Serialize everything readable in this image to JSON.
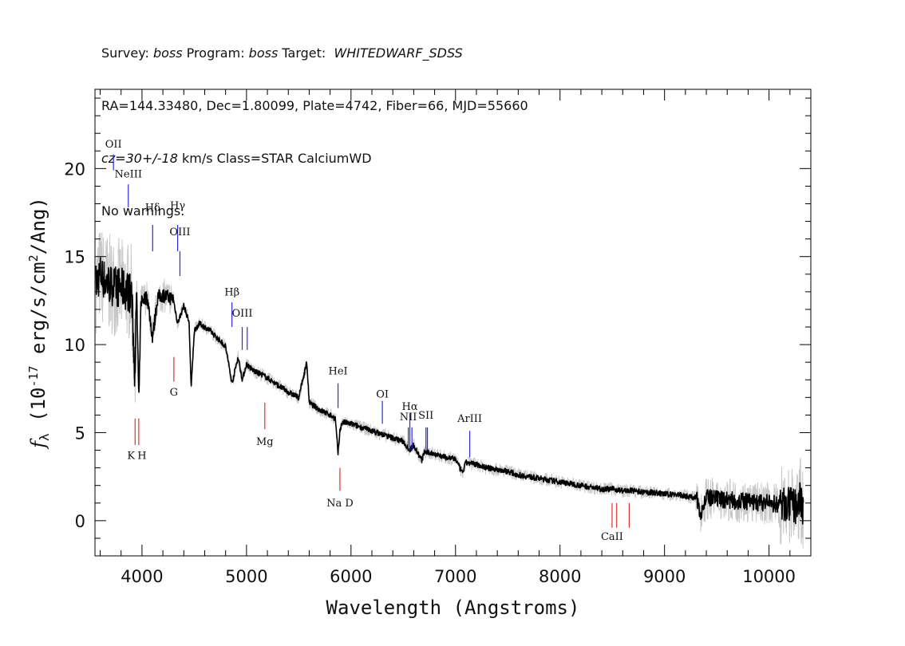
{
  "header": {
    "line1": {
      "survey_label": "Survey: ",
      "survey": "boss",
      "program_label": " Program: ",
      "program": "boss",
      "target_label": " Target:  ",
      "target": "WHITEDWARF_SDSS"
    },
    "line2": "RA=144.33480, Dec=1.80099, Plate=4742, Fiber=66, MJD=55660",
    "line3": {
      "cz": "cz=30+/-18",
      "rest": " km/s Class=STAR CalciumWD"
    },
    "line4": "No warnings."
  },
  "colors": {
    "spectrum": "#000000",
    "noise": "#c8c8c8",
    "emission_marker": "#2b2bd6",
    "absorption_marker": "#e03030",
    "frame": "#000000"
  },
  "chart_data": {
    "type": "line",
    "xlabel": "Wavelength (Angstroms)",
    "ylabel_prefix": "f",
    "ylabel_sub": "λ",
    "ylabel_main": " (10",
    "ylabel_exp": "-17",
    "ylabel_units": " erg/s/cm",
    "ylabel_exp2": "2",
    "ylabel_end": "/Ang)",
    "xlim": [
      3550,
      10400
    ],
    "ylim": [
      -2,
      24.5
    ],
    "xticks": [
      4000,
      5000,
      6000,
      7000,
      8000,
      9000,
      10000
    ],
    "xtick_labels": [
      "4000",
      "5000",
      "6000",
      "7000",
      "8000",
      "9000",
      "10000"
    ],
    "yticks": [
      0,
      5,
      10,
      15,
      20
    ],
    "ytick_labels": [
      "0",
      "5",
      "10",
      "15",
      "20"
    ],
    "series": [
      {
        "x": [
          3560,
          3600,
          3650,
          3700,
          3750,
          3800,
          3850,
          3900,
          3930,
          3950,
          3970,
          3990,
          4050,
          4101,
          4150,
          4200,
          4250,
          4300,
          4340,
          4400,
          4450,
          4471,
          4500,
          4550,
          4600,
          4650,
          4700,
          4750,
          4800,
          4861,
          4920,
          4960,
          5000,
          5050,
          5100,
          5150,
          5200,
          5300,
          5400,
          5500,
          5577,
          5600,
          5700,
          5800,
          5850,
          5876,
          5895,
          5920,
          6000,
          6100,
          6200,
          6300,
          6400,
          6500,
          6563,
          6600,
          6678,
          6700,
          6800,
          6900,
          7000,
          7065,
          7100,
          7200,
          7300,
          7400,
          7500,
          7600,
          7700,
          7800,
          7900,
          8000,
          8100,
          8200,
          8300,
          8400,
          8500,
          8600,
          8700,
          8800,
          8900,
          9000,
          9100,
          9200,
          9300,
          9350,
          9400,
          9500,
          9600,
          9700,
          9800,
          9900,
          10000,
          10100,
          10200,
          10250,
          10300,
          10330
        ],
        "y": [
          13.5,
          14.0,
          13.6,
          13.4,
          13.3,
          13.2,
          13.1,
          12.9,
          8.5,
          12.7,
          6.6,
          12.5,
          12.7,
          10.4,
          12.7,
          12.8,
          12.7,
          12.6,
          11.2,
          12.2,
          11.3,
          7.5,
          10.8,
          11.2,
          11.0,
          10.8,
          10.5,
          10.2,
          9.9,
          7.8,
          9.3,
          8.0,
          8.9,
          8.6,
          8.4,
          8.3,
          8.1,
          7.7,
          7.3,
          7.0,
          9.0,
          6.7,
          6.3,
          6.0,
          5.8,
          3.8,
          5.2,
          5.6,
          5.5,
          5.3,
          5.1,
          4.9,
          4.7,
          4.5,
          4.0,
          4.3,
          3.4,
          3.9,
          3.8,
          3.6,
          3.5,
          2.7,
          3.3,
          3.2,
          3.0,
          2.9,
          2.8,
          2.6,
          2.5,
          2.4,
          2.3,
          2.2,
          2.1,
          2.0,
          1.9,
          1.8,
          1.8,
          1.7,
          1.7,
          1.6,
          1.6,
          1.5,
          1.5,
          1.4,
          1.3,
          0.5,
          1.3,
          1.2,
          1.2,
          1.1,
          1.1,
          1.0,
          1.0,
          0.9,
          0.9,
          0.8,
          1.2,
          0.6
        ]
      }
    ],
    "line_markers": [
      {
        "label": "OII",
        "x": 3727,
        "color": "blue",
        "tick": [
          20.8,
          19.9
        ],
        "label_y": 21.2
      },
      {
        "label": "NeIII",
        "x": 3869,
        "color": "blue",
        "tick": [
          19.1,
          17.8
        ],
        "label_y": 19.5
      },
      {
        "label": "Hδ",
        "x": 4102,
        "color": "blue",
        "tick": [
          16.8,
          15.3
        ],
        "label_y": 17.6
      },
      {
        "label": "Hγ",
        "x": 4341,
        "color": "blue",
        "tick": [
          16.8,
          15.3
        ],
        "label_y": 17.7
      },
      {
        "label": "OIII",
        "x": 4363,
        "color": "blue",
        "tick": [
          15.3,
          13.9
        ],
        "label_y": 16.2
      },
      {
        "label": "Hβ",
        "x": 4861,
        "color": "blue",
        "tick": [
          12.4,
          11.0
        ],
        "label_y": 12.8
      },
      {
        "label": "OIII",
        "x": 4959,
        "color": "blue",
        "tick": [
          11.0,
          9.7
        ],
        "label_y": 11.6
      },
      {
        "label": "OIII",
        "x": 5007,
        "color": "blue",
        "tick": [
          11.0,
          9.7
        ],
        "label_y": 11.6
      },
      {
        "label": "HeI",
        "x": 5876,
        "color": "blue",
        "tick": [
          7.8,
          6.4
        ],
        "label_y": 8.3
      },
      {
        "label": "OI",
        "x": 6300,
        "color": "blue",
        "tick": [
          6.8,
          5.5
        ],
        "label_y": 7.0
      },
      {
        "label": "NII",
        "x": 6548,
        "color": "blue",
        "tick": [
          5.3,
          4.0
        ],
        "label_y": 5.7
      },
      {
        "label": "Hα",
        "x": 6563,
        "color": "blue",
        "tick": [
          6.1,
          4.0
        ],
        "label_y": 6.3
      },
      {
        "label": "NII",
        "x": 6583,
        "color": "blue",
        "tick": [
          5.3,
          4.0
        ],
        "label_y": 5.7
      },
      {
        "label": "SII",
        "x": 6717,
        "color": "blue",
        "tick": [
          5.3,
          4.0
        ],
        "label_y": 5.8
      },
      {
        "label": "SII",
        "x": 6731,
        "color": "blue",
        "tick": [
          5.3,
          4.0
        ],
        "label_y": 5.8
      },
      {
        "label": "ArIII",
        "x": 7136,
        "color": "blue",
        "tick": [
          5.1,
          3.6
        ],
        "label_y": 5.6
      },
      {
        "label": "K",
        "x": 3934,
        "color": "red",
        "tick": [
          5.8,
          4.3
        ],
        "label_y": 3.5
      },
      {
        "label": "H",
        "x": 3969,
        "color": "red",
        "tick": [
          5.8,
          4.3
        ],
        "label_y": 3.5
      },
      {
        "label": "G",
        "x": 4305,
        "color": "red",
        "tick": [
          9.3,
          7.9
        ],
        "label_y": 7.1
      },
      {
        "label": "Mg",
        "x": 5175,
        "color": "red",
        "tick": [
          6.7,
          5.2
        ],
        "label_y": 4.3
      },
      {
        "label": "Na D",
        "x": 5894,
        "color": "red",
        "tick": [
          3.0,
          1.7
        ],
        "label_y": 0.8
      },
      {
        "label": "CaII",
        "x": 8498,
        "color": "red",
        "tick": [
          1.0,
          -0.4
        ],
        "label_y": -1.1
      },
      {
        "label": "CaII",
        "x": 8542,
        "color": "red",
        "tick": [
          1.0,
          -0.4
        ],
        "label_y": -1.1
      },
      {
        "label": "CaII",
        "x": 8662,
        "color": "red",
        "tick": [
          1.0,
          -0.4
        ],
        "label_y": -1.1
      }
    ],
    "grid": false,
    "legend": "none"
  }
}
